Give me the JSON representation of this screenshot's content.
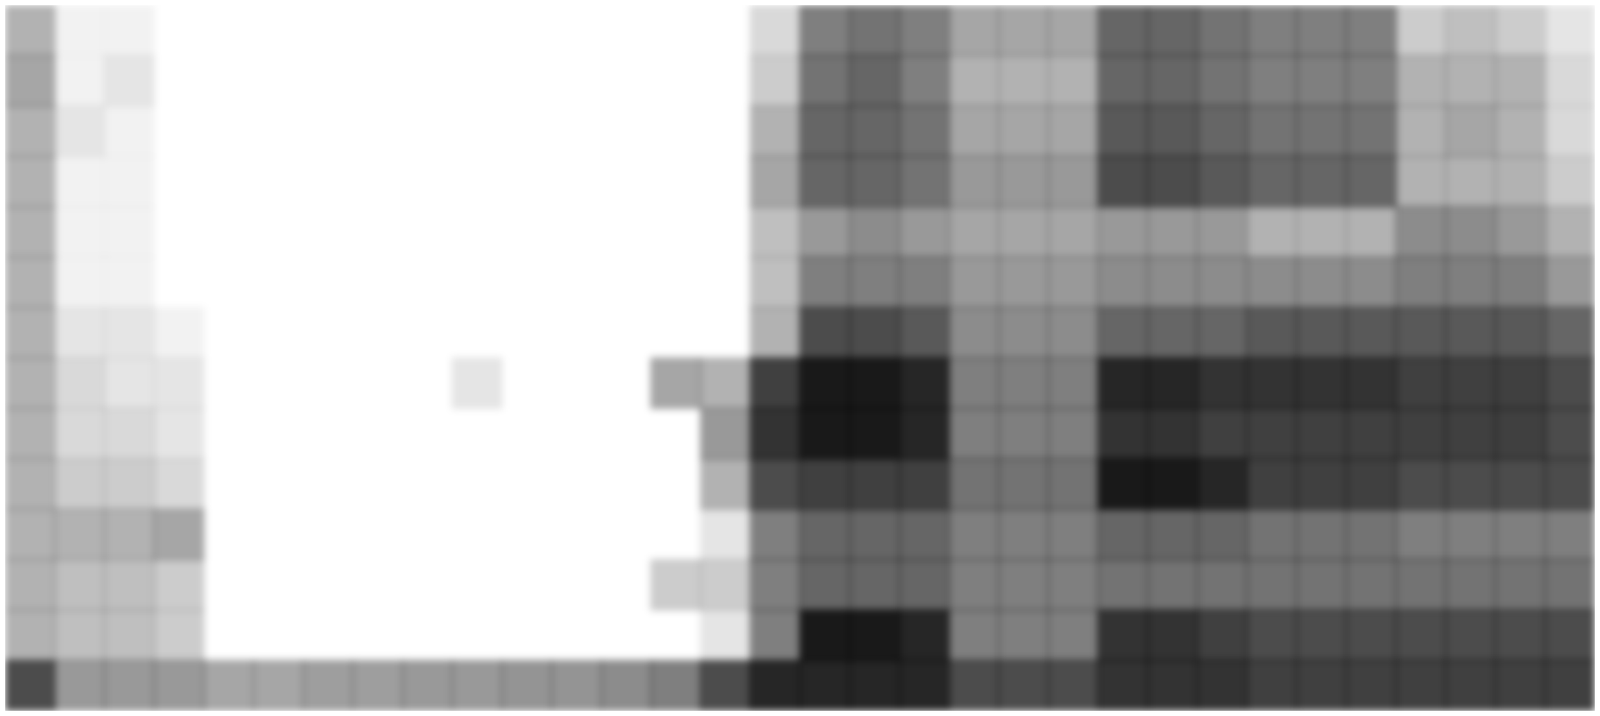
{
  "chart_data": {
    "type": "heatmap",
    "tick_labels": false,
    "color": "#000000",
    "cells": [
      [
        0.7,
        0.4,
        0.4,
        0.4,
        0.35,
        0.35,
        0.38,
        0.38,
        0.4,
        0.4,
        0.42,
        0.42,
        0.45,
        0.5,
        0.7,
        0.85,
        0.85,
        0.85,
        0.85,
        0.7,
        0.7,
        0.7,
        0.8,
        0.8,
        0.8,
        0.75,
        0.75,
        0.75,
        0.75,
        0.75,
        0.75,
        0.75
      ],
      [
        0.3,
        0.25,
        0.25,
        0.2,
        0,
        0,
        0,
        0,
        0,
        0,
        0,
        0,
        0,
        0,
        0.1,
        0.5,
        0.9,
        0.9,
        0.85,
        0.5,
        0.5,
        0.5,
        0.8,
        0.8,
        0.75,
        0.7,
        0.7,
        0.7,
        0.7,
        0.7,
        0.7,
        0.7
      ],
      [
        0.3,
        0.25,
        0.25,
        0.2,
        0,
        0,
        0,
        0,
        0,
        0,
        0,
        0,
        0,
        0.2,
        0.2,
        0.5,
        0.6,
        0.6,
        0.6,
        0.5,
        0.5,
        0.5,
        0.55,
        0.55,
        0.55,
        0.55,
        0.55,
        0.55,
        0.55,
        0.55,
        0.55,
        0.55
      ],
      [
        0.3,
        0.3,
        0.3,
        0.35,
        0,
        0,
        0,
        0,
        0,
        0,
        0,
        0,
        0,
        0,
        0.1,
        0.5,
        0.6,
        0.6,
        0.6,
        0.5,
        0.5,
        0.5,
        0.6,
        0.6,
        0.6,
        0.55,
        0.55,
        0.55,
        0.5,
        0.5,
        0.5,
        0.5
      ],
      [
        0.3,
        0.2,
        0.2,
        0.15,
        0,
        0,
        0,
        0,
        0,
        0,
        0,
        0,
        0,
        0,
        0.3,
        0.7,
        0.75,
        0.75,
        0.75,
        0.55,
        0.55,
        0.55,
        0.9,
        0.9,
        0.85,
        0.75,
        0.75,
        0.75,
        0.7,
        0.7,
        0.7,
        0.7
      ],
      [
        0.3,
        0.15,
        0.15,
        0.1,
        0,
        0,
        0,
        0,
        0,
        0,
        0,
        0,
        0,
        0,
        0.4,
        0.8,
        0.9,
        0.9,
        0.85,
        0.5,
        0.5,
        0.5,
        0.8,
        0.8,
        0.75,
        0.75,
        0.75,
        0.75,
        0.75,
        0.75,
        0.75,
        0.7
      ],
      [
        0.3,
        0.15,
        0.1,
        0.1,
        0,
        0,
        0,
        0,
        0,
        0.1,
        0,
        0,
        0,
        0.35,
        0.3,
        0.75,
        0.9,
        0.9,
        0.85,
        0.5,
        0.5,
        0.5,
        0.85,
        0.85,
        0.8,
        0.8,
        0.8,
        0.8,
        0.75,
        0.75,
        0.75,
        0.7
      ],
      [
        0.3,
        0.1,
        0.1,
        0.05,
        0,
        0,
        0,
        0,
        0,
        0,
        0,
        0,
        0,
        0,
        0,
        0.3,
        0.7,
        0.7,
        0.65,
        0.45,
        0.45,
        0.45,
        0.6,
        0.6,
        0.6,
        0.65,
        0.65,
        0.65,
        0.65,
        0.65,
        0.65,
        0.6
      ],
      [
        0.3,
        0.05,
        0.05,
        0,
        0,
        0,
        0,
        0,
        0,
        0,
        0,
        0,
        0,
        0,
        0,
        0.25,
        0.5,
        0.5,
        0.5,
        0.4,
        0.4,
        0.4,
        0.45,
        0.45,
        0.45,
        0.45,
        0.45,
        0.45,
        0.5,
        0.5,
        0.5,
        0.4
      ],
      [
        0.3,
        0.05,
        0.05,
        0,
        0,
        0,
        0,
        0,
        0,
        0,
        0,
        0,
        0,
        0,
        0,
        0.25,
        0.4,
        0.45,
        0.4,
        0.35,
        0.35,
        0.35,
        0.4,
        0.4,
        0.4,
        0.3,
        0.3,
        0.3,
        0.45,
        0.45,
        0.4,
        0.3
      ],
      [
        0.3,
        0.05,
        0.05,
        0,
        0,
        0,
        0,
        0,
        0,
        0,
        0,
        0,
        0,
        0,
        0,
        0.35,
        0.6,
        0.6,
        0.55,
        0.4,
        0.4,
        0.4,
        0.7,
        0.7,
        0.65,
        0.6,
        0.6,
        0.6,
        0.3,
        0.3,
        0.3,
        0.2
      ],
      [
        0.3,
        0.1,
        0.05,
        0,
        0,
        0,
        0,
        0,
        0,
        0,
        0,
        0,
        0,
        0,
        0,
        0.3,
        0.6,
        0.6,
        0.55,
        0.35,
        0.35,
        0.35,
        0.65,
        0.65,
        0.6,
        0.55,
        0.55,
        0.55,
        0.3,
        0.35,
        0.3,
        0.15
      ],
      [
        0.35,
        0.05,
        0.1,
        0,
        0,
        0,
        0,
        0,
        0,
        0,
        0,
        0,
        0,
        0,
        0,
        0.2,
        0.55,
        0.6,
        0.5,
        0.3,
        0.3,
        0.3,
        0.6,
        0.6,
        0.55,
        0.5,
        0.5,
        0.5,
        0.3,
        0.3,
        0.3,
        0.15
      ],
      [
        0.3,
        0.05,
        0.05,
        0,
        0,
        0,
        0,
        0,
        0,
        0,
        0,
        0,
        0,
        0,
        0,
        0.15,
        0.5,
        0.55,
        0.5,
        0.35,
        0.35,
        0.35,
        0.6,
        0.6,
        0.55,
        0.5,
        0.5,
        0.5,
        0.2,
        0.25,
        0.2,
        0.1
      ]
    ]
  }
}
